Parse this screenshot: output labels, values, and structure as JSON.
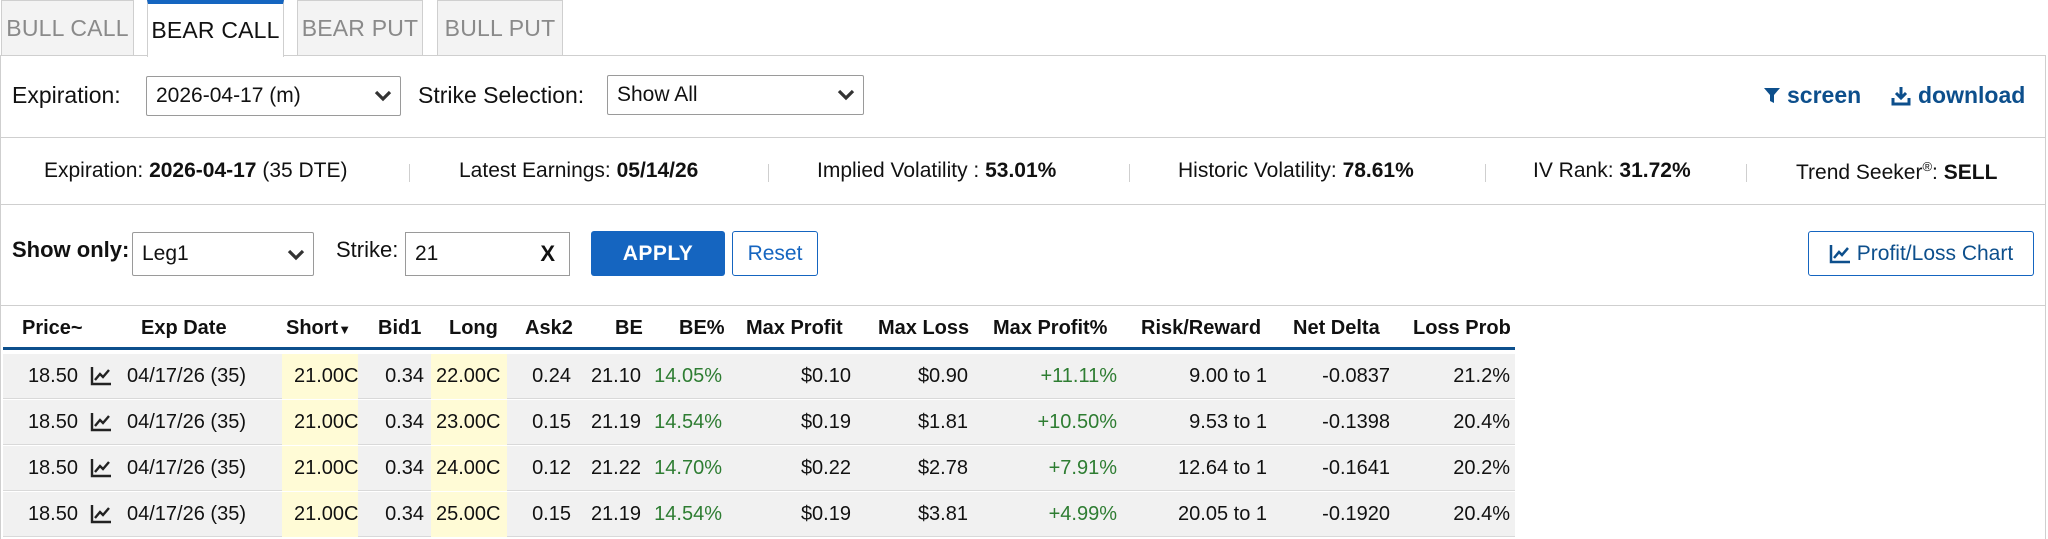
{
  "tabs": [
    "BULL CALL",
    "BEAR CALL",
    "BEAR PUT",
    "BULL PUT"
  ],
  "active_tab": "BEAR CALL",
  "controls": {
    "expiration_label": "Expiration:",
    "expiration_value": "2026-04-17 (m)",
    "strike_selection_label": "Strike Selection:",
    "strike_selection_value": "Show All",
    "screen_label": "screen",
    "download_label": "download"
  },
  "stats": {
    "expiration_label": "Expiration:",
    "expiration_date": "2026-04-17",
    "expiration_dte": "(35 DTE)",
    "earnings_label": "Latest Earnings:",
    "earnings_value": "05/14/26",
    "iv_label": "Implied Volatility :",
    "iv_value": "53.01%",
    "hv_label": "Historic Volatility:",
    "hv_value": "78.61%",
    "ivrank_label": "IV Rank:",
    "ivrank_value": "31.72%",
    "trend_label": "Trend Seeker",
    "trend_reg": "®",
    "trend_colon": ":",
    "trend_value": "SELL"
  },
  "filters": {
    "show_only_label": "Show only:",
    "show_only_value": "Leg1",
    "strike_label": "Strike:",
    "strike_value": "21",
    "clear_label": "X",
    "apply_label": "APPLY",
    "reset_label": "Reset",
    "pl_chart_label": "Profit/Loss Chart"
  },
  "table": {
    "headers": [
      "Price~",
      "Exp Date",
      "Short",
      "Bid1",
      "Long",
      "Ask2",
      "BE",
      "BE%",
      "Max Profit",
      "Max Loss",
      "Max Profit%",
      "Risk/Reward",
      "Net Delta",
      "Loss Prob"
    ],
    "rows": [
      [
        "18.50",
        "04/17/26 (35)",
        "21.00C",
        "0.34",
        "22.00C",
        "0.24",
        "21.10",
        "14.05%",
        "$0.10",
        "$0.90",
        "+11.11%",
        "9.00 to 1",
        "-0.0837",
        "21.2%"
      ],
      [
        "18.50",
        "04/17/26 (35)",
        "21.00C",
        "0.34",
        "23.00C",
        "0.15",
        "21.19",
        "14.54%",
        "$0.19",
        "$1.81",
        "+10.50%",
        "9.53 to 1",
        "-0.1398",
        "20.4%"
      ],
      [
        "18.50",
        "04/17/26 (35)",
        "21.00C",
        "0.34",
        "24.00C",
        "0.12",
        "21.22",
        "14.70%",
        "$0.22",
        "$2.78",
        "+7.91%",
        "12.64 to 1",
        "-0.1641",
        "20.2%"
      ],
      [
        "18.50",
        "04/17/26 (35)",
        "21.00C",
        "0.34",
        "25.00C",
        "0.15",
        "21.19",
        "14.54%",
        "$0.19",
        "$3.81",
        "+4.99%",
        "20.05 to 1",
        "-0.1920",
        "20.4%"
      ]
    ]
  },
  "colors": {
    "accent": "#1565c0",
    "link": "#0d4f8c",
    "positive": "#2e7d32",
    "highlight": "#fffbd6"
  }
}
